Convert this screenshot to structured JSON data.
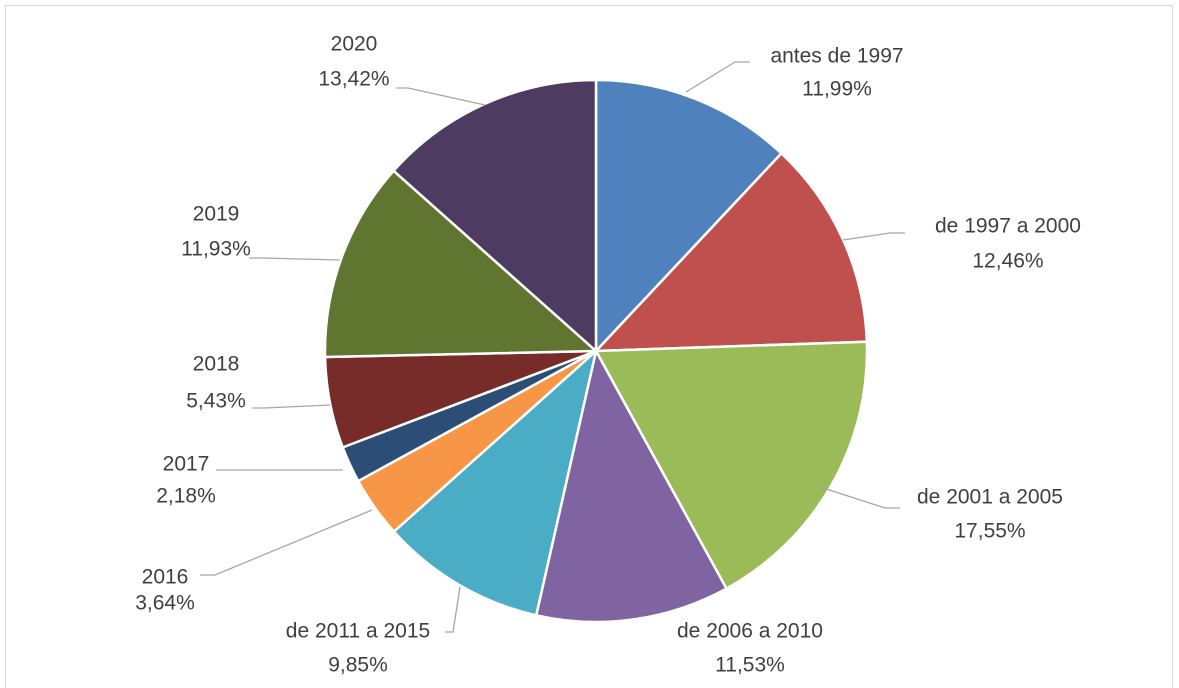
{
  "chart_data": {
    "type": "pie",
    "categories": [
      "antes de 1997",
      "de 1997 a 2000",
      "de 2001 a 2005",
      "de 2006 a 2010",
      "de 2011 a 2015",
      "2016",
      "2017",
      "2018",
      "2019",
      "2020"
    ],
    "values": [
      11.99,
      12.46,
      17.55,
      11.53,
      9.85,
      3.64,
      2.18,
      5.43,
      11.93,
      13.42
    ],
    "value_labels": [
      "11,99%",
      "12,46%",
      "17,55%",
      "11,53%",
      "9,85%",
      "3,64%",
      "2,18%",
      "5,43%",
      "11,93%",
      "13,42%"
    ],
    "colors": [
      "#4f81bd",
      "#c0504d",
      "#9bbb59",
      "#8064a2",
      "#4bacc6",
      "#f79646",
      "#2c4d75",
      "#772c2a",
      "#5f7530",
      "#4d3b62"
    ]
  }
}
